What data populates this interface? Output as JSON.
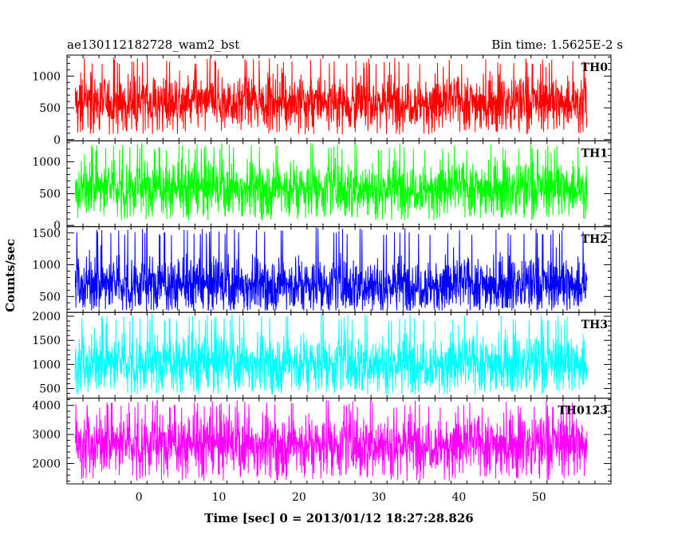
{
  "header": {
    "left_title": "ae130112182728_wam2_bst",
    "right_title": "Bin time: 1.5625E-2 s"
  },
  "chart_data": {
    "type": "line",
    "title": "ae130112182728_wam2_bst",
    "subtitle": "Bin time: 1.5625E-2 s",
    "xlabel": "Time [sec] 0 = 2013/01/12 18:27:28.826",
    "ylabel": "Counts/sec",
    "xlim": [
      -9,
      59
    ],
    "x_ticks": [
      0,
      10,
      20,
      30,
      40,
      50
    ],
    "x_tick_labels": [
      "0",
      "10",
      "20",
      "30",
      "40",
      "50"
    ],
    "x_data_range": [
      -8,
      56
    ],
    "grid": false,
    "legend": "none",
    "panels": [
      {
        "name": "TH0",
        "color": "#ff0000",
        "ylim": [
          -20,
          1330
        ],
        "y_ticks": [
          0,
          500,
          1000
        ],
        "y_tick_labels": [
          "0",
          "500",
          "1000"
        ],
        "mean": 600,
        "spread": 200,
        "min": 80,
        "max": 1300
      },
      {
        "name": "TH1",
        "color": "#00ff00",
        "ylim": [
          -20,
          1330
        ],
        "y_ticks": [
          0,
          500,
          1000
        ],
        "y_tick_labels": [
          "0",
          "500",
          "1000"
        ],
        "mean": 600,
        "spread": 200,
        "min": 80,
        "max": 1300
      },
      {
        "name": "TH2",
        "color": "#0000ff",
        "ylim": [
          250,
          1600
        ],
        "y_ticks": [
          500,
          1000,
          1500
        ],
        "y_tick_labels": [
          "500",
          "1000",
          "1500"
        ],
        "mean": 700,
        "spread": 210,
        "min": 280,
        "max": 1590
      },
      {
        "name": "TH3",
        "color": "#00ffff",
        "ylim": [
          300,
          2080
        ],
        "y_ticks": [
          500,
          1000,
          1500,
          2000
        ],
        "y_tick_labels": [
          "500",
          "1000",
          "1500",
          "2000"
        ],
        "mean": 1050,
        "spread": 280,
        "min": 380,
        "max": 2060
      },
      {
        "name": "TH0123",
        "color": "#ff00ff",
        "ylim": [
          1300,
          4250
        ],
        "y_ticks": [
          2000,
          3000,
          4000
        ],
        "y_tick_labels": [
          "2000",
          "3000",
          "4000"
        ],
        "mean": 2700,
        "spread": 480,
        "min": 1400,
        "max": 4200
      }
    ]
  }
}
